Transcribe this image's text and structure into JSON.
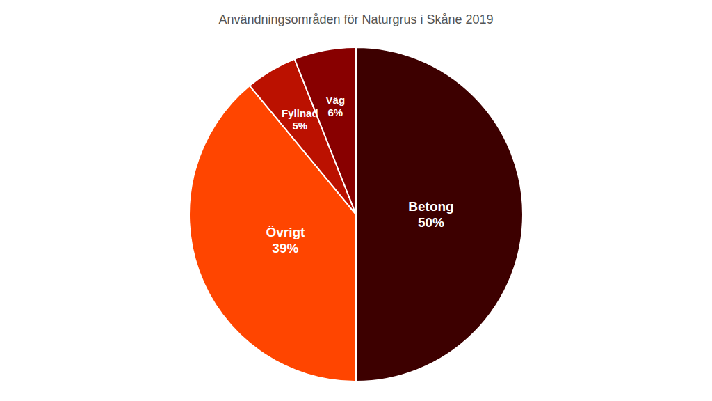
{
  "chart_data": {
    "type": "pie",
    "title": "Användningsområden för Naturgrus i Skåne 2019",
    "categories": [
      "Betong",
      "Övrigt",
      "Fyllnad",
      "Väg"
    ],
    "values": [
      50,
      39,
      5,
      6
    ],
    "value_labels": [
      "50%",
      "39%",
      "5%",
      "6%"
    ],
    "colors": [
      "#3d0000",
      "#ff4500",
      "#bb1100",
      "#880000"
    ],
    "data_labels": true
  }
}
